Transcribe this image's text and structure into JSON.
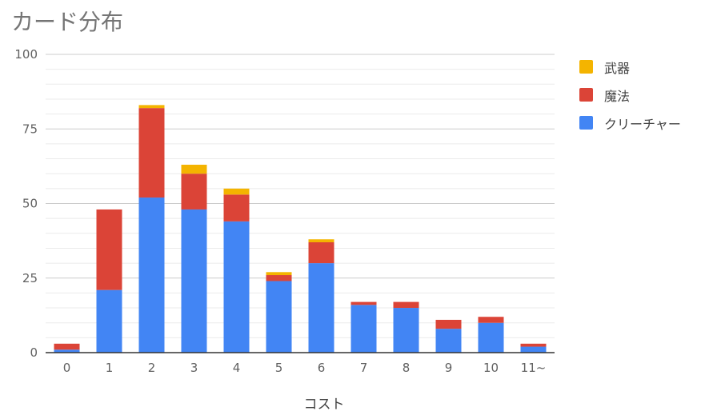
{
  "chart_data": {
    "type": "bar",
    "stacked": true,
    "title": "カード分布",
    "xlabel": "コスト",
    "ylabel": "",
    "ylim": [
      0,
      100
    ],
    "yticks": [
      "0",
      "25",
      "50",
      "75",
      "100"
    ],
    "grid": true,
    "legend_position": "right",
    "categories": [
      "0",
      "1",
      "2",
      "3",
      "4",
      "5",
      "6",
      "7",
      "8",
      "9",
      "10",
      "11~"
    ],
    "series": [
      {
        "name": "クリーチャー",
        "color": "#4285f4",
        "values": [
          1,
          21,
          52,
          48,
          44,
          24,
          30,
          16,
          15,
          8,
          10,
          2
        ]
      },
      {
        "name": "魔法",
        "color": "#db4437",
        "values": [
          2,
          27,
          30,
          12,
          9,
          2,
          7,
          1,
          2,
          3,
          2,
          1
        ]
      },
      {
        "name": "武器",
        "color": "#f4b400",
        "values": [
          0,
          0,
          1,
          3,
          2,
          1,
          1,
          0,
          0,
          0,
          0,
          0
        ]
      }
    ],
    "legend": [
      "武器",
      "魔法",
      "クリーチャー"
    ]
  }
}
